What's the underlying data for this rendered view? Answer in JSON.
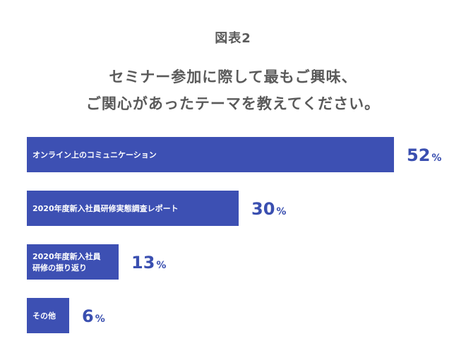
{
  "figure_label": "図表2",
  "title_lines": [
    "セミナー参加に際して最もご興味、",
    "ご関心があったテーマを教えてください。"
  ],
  "colors": {
    "bar": "#3d50b3",
    "value_text": "#3a4fb0",
    "title_text": "#5a5a5a"
  },
  "chart_data": {
    "type": "bar",
    "orientation": "horizontal",
    "title": "セミナー参加に際して最もご興味、ご関心があったテーマを教えてください。",
    "unit": "%",
    "xlim": [
      0,
      100
    ],
    "grid": false,
    "categories": [
      [
        "オンライン上のコミュニケーション"
      ],
      [
        "2020年度新入社員研修実態調査レポート"
      ],
      [
        "2020年度新入社員",
        "研修の振り返り"
      ],
      [
        "その他"
      ]
    ],
    "values": [
      52,
      30,
      13,
      6
    ]
  }
}
